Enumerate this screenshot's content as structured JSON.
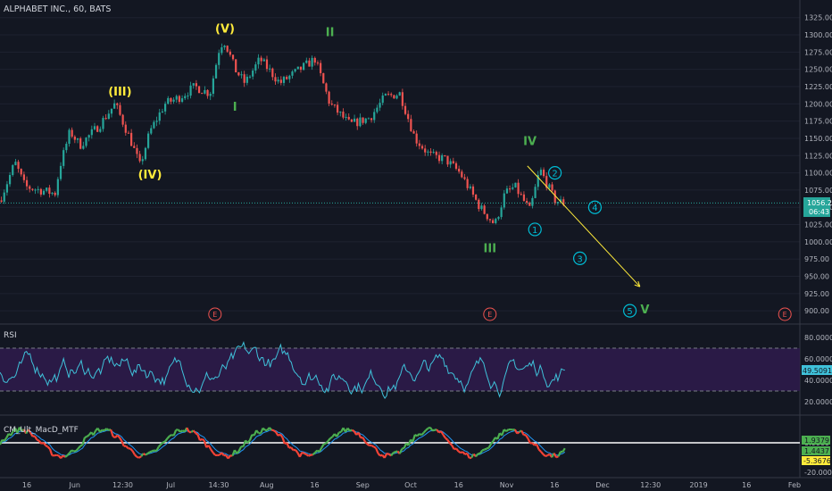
{
  "header": {
    "symbol_label": "ALPHABET INC., 60, BATS"
  },
  "colors": {
    "background": "#131722",
    "grid": "#1e2230",
    "axis_text": "#b2b5be",
    "candle_up": "#26a69a",
    "candle_down": "#ef5350",
    "last_price": "#26a69a",
    "wave_primary": "#ffeb3b",
    "wave_intermediate": "#4caf50",
    "wave_minor": "#00bcd4",
    "projection": "#ffeb3b",
    "earnings": "#ef5350",
    "rsi_line": "#3fc1d9",
    "rsi_band": "#2e1b4a",
    "macd_up": "#4caf50",
    "macd_down": "#f44336",
    "macd_signal": "#2196f3"
  },
  "chart_data": [
    {
      "type": "candlestick",
      "title": "ALPHABET INC., 60, BATS",
      "y_ticks": [
        1325,
        1300,
        1275,
        1250,
        1225,
        1200,
        1175,
        1150,
        1125,
        1100,
        1075,
        1050,
        1025,
        1000,
        975,
        950,
        925,
        900
      ],
      "y_tick_labels": [
        "1325.00",
        "1300.00",
        "1275.00",
        "1250.00",
        "1225.00",
        "1200.00",
        "1175.00",
        "1150.00",
        "1125.00",
        "1100.00",
        "1075.00",
        "1050.00",
        "1025.00",
        "1000.00",
        "975.00",
        "950.00",
        "925.00",
        "900.00"
      ],
      "ylim": [
        895,
        1335
      ],
      "x_tick_labels": [
        "16",
        "Jun",
        "12:30",
        "Jul",
        "14:30",
        "Aug",
        "16",
        "Sep",
        "Oct",
        "16",
        "Nov",
        "16",
        "Dec",
        "12:30",
        "2019",
        "16",
        "Feb"
      ],
      "last_price": 1056.21,
      "last_price_label": "1056.21",
      "countdown_label": "06:43",
      "price_path": [
        {
          "t": 0,
          "p": 1060
        },
        {
          "t": 0.03,
          "p": 1115
        },
        {
          "t": 0.05,
          "p": 1080
        },
        {
          "t": 0.11,
          "p": 1070
        },
        {
          "t": 0.12,
          "p": 1110
        },
        {
          "t": 0.14,
          "p": 1160
        },
        {
          "t": 0.16,
          "p": 1140
        },
        {
          "t": 0.2,
          "p": 1170
        },
        {
          "t": 0.23,
          "p": 1200
        },
        {
          "t": 0.26,
          "p": 1150
        },
        {
          "t": 0.28,
          "p": 1110
        },
        {
          "t": 0.3,
          "p": 1160
        },
        {
          "t": 0.33,
          "p": 1200
        },
        {
          "t": 0.36,
          "p": 1210
        },
        {
          "t": 0.39,
          "p": 1225
        },
        {
          "t": 0.42,
          "p": 1215
        },
        {
          "t": 0.44,
          "p": 1285
        },
        {
          "t": 0.45,
          "p": 1290
        },
        {
          "t": 0.47,
          "p": 1250
        },
        {
          "t": 0.49,
          "p": 1230
        },
        {
          "t": 0.52,
          "p": 1265
        },
        {
          "t": 0.56,
          "p": 1230
        },
        {
          "t": 0.6,
          "p": 1250
        },
        {
          "t": 0.63,
          "p": 1265
        },
        {
          "t": 0.66,
          "p": 1200
        },
        {
          "t": 0.7,
          "p": 1170
        },
        {
          "t": 0.74,
          "p": 1180
        },
        {
          "t": 0.77,
          "p": 1210
        },
        {
          "t": 0.8,
          "p": 1215
        },
        {
          "t": 0.83,
          "p": 1150
        },
        {
          "t": 0.86,
          "p": 1125
        },
        {
          "t": 0.89,
          "p": 1120
        },
        {
          "t": 0.92,
          "p": 1100
        },
        {
          "t": 0.96,
          "p": 1050
        },
        {
          "t": 0.99,
          "p": 1025
        },
        {
          "t": 1.01,
          "p": 1070
        },
        {
          "t": 1.03,
          "p": 1080
        },
        {
          "t": 1.06,
          "p": 1045
        },
        {
          "t": 1.08,
          "p": 1105
        },
        {
          "t": 1.11,
          "p": 1060
        },
        {
          "t": 1.13,
          "p": 1056
        }
      ],
      "wave_labels": [
        {
          "text": "(III)",
          "t": 0.24,
          "p": 1212,
          "color": "wave_primary"
        },
        {
          "text": "(IV)",
          "t": 0.3,
          "p": 1092,
          "color": "wave_primary"
        },
        {
          "text": "(V)",
          "t": 0.45,
          "p": 1303,
          "color": "wave_primary"
        },
        {
          "text": "I",
          "t": 0.47,
          "p": 1190,
          "color": "wave_intermediate"
        },
        {
          "text": "II",
          "t": 0.66,
          "p": 1298,
          "color": "wave_intermediate"
        },
        {
          "text": "III",
          "t": 0.98,
          "p": 985,
          "color": "wave_intermediate"
        },
        {
          "text": "IV",
          "t": 1.06,
          "p": 1140,
          "color": "wave_intermediate"
        },
        {
          "text": "V",
          "t": 1.29,
          "p": 896,
          "color": "wave_intermediate"
        }
      ],
      "minor_wave_labels": [
        {
          "text": "1",
          "t": 1.07,
          "p": 1018
        },
        {
          "text": "2",
          "t": 1.11,
          "p": 1100
        },
        {
          "text": "3",
          "t": 1.16,
          "p": 976
        },
        {
          "text": "4",
          "t": 1.19,
          "p": 1050
        },
        {
          "text": "5",
          "t": 1.26,
          "p": 900
        }
      ],
      "projection_line": {
        "from": {
          "t": 1.055,
          "p": 1110
        },
        "to": {
          "t": 1.28,
          "p": 935
        }
      },
      "earnings_markers": [
        {
          "t": 0.43,
          "label": "E"
        },
        {
          "t": 0.98,
          "label": "E"
        },
        {
          "t": 1.57,
          "label": "E"
        }
      ]
    },
    {
      "type": "line",
      "title": "RSI",
      "series_label": "RSI",
      "y_ticks": [
        80,
        60,
        40,
        20
      ],
      "y_tick_labels": [
        "80.0000",
        "60.0000",
        "40.0000",
        "20.0000"
      ],
      "ylim": [
        10,
        90
      ],
      "band": [
        30,
        70
      ],
      "last_value": 49.5091,
      "last_value_label": "49.5091"
    },
    {
      "type": "histogram",
      "title": "CM_Ult_MacD_MTF",
      "series_label": "CM_Ult_MacD_MTF",
      "y_ticks": [
        0,
        -20
      ],
      "y_tick_labels": [
        "0.0000",
        "-20.0000"
      ],
      "ylim": [
        -23,
        17
      ],
      "value_labels": [
        "1.9379",
        "1.4437",
        "-5.3676"
      ]
    }
  ]
}
